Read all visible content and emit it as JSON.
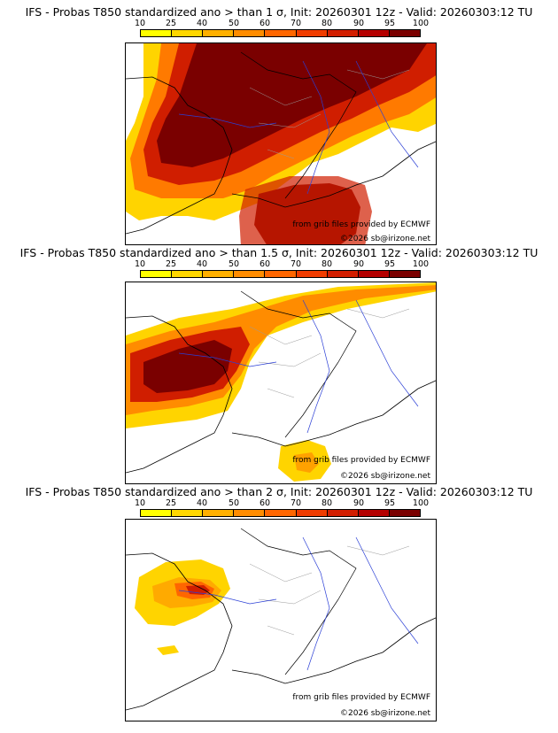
{
  "colorbar": {
    "ticks": [
      "10",
      "25",
      "40",
      "50",
      "60",
      "70",
      "80",
      "90",
      "95",
      "100"
    ],
    "colors": [
      "#ffff00",
      "#ffd700",
      "#ffb000",
      "#ff8c00",
      "#ff6600",
      "#f03c00",
      "#d21e00",
      "#b40000",
      "#7a0000"
    ]
  },
  "palette": {
    "land": "#ffffff",
    "borders": "#000000",
    "regions": "#9a9a9a",
    "rivers": "#2b3fd6"
  },
  "panels": [
    {
      "title": "IFS - Probas T850  standardized ano > than 1 σ, Init: 20260301 12z - Valid: 20260303:12 TU",
      "credit_source": "from grib files provided by ECMWF",
      "credit_copyright": "©2026 sb@irizone.net",
      "threshold_sigma": 1
    },
    {
      "title": "IFS - Probas T850  standardized ano > than 1.5 σ, Init: 20260301 12z - Valid: 20260303:12 TU",
      "credit_source": "from grib files provided by ECMWF",
      "credit_copyright": "©2026 sb@irizone.net",
      "threshold_sigma": 1.5
    },
    {
      "title": "IFS - Probas T850  standardized ano > than 2 σ, Init: 20260301 12z - Valid: 20260303:12 TU",
      "credit_source": "from grib files provided by ECMWF",
      "credit_copyright": "©2026 sb@irizone.net",
      "threshold_sigma": 2
    }
  ]
}
